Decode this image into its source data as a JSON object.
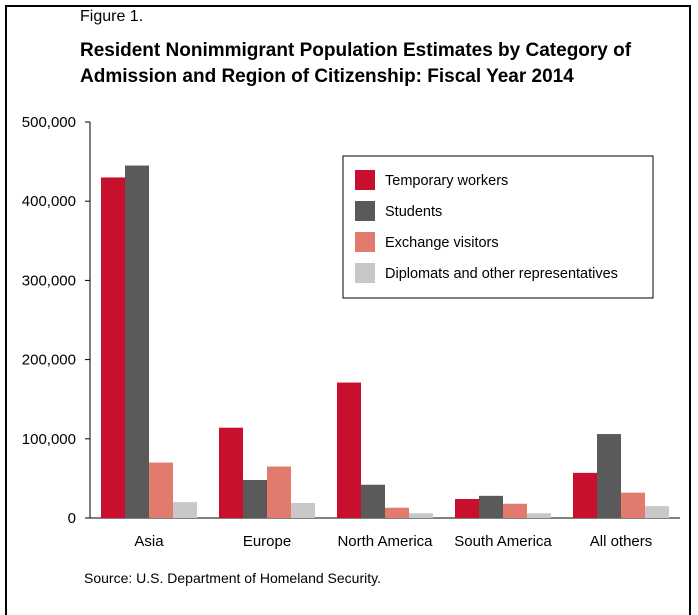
{
  "figure_label": "Figure 1.",
  "title": "Resident Nonimmigrant Population Estimates by Category of Admission and Region of Citizenship: Fiscal Year 2014",
  "source": "Source: U.S. Department of Homeland Security.",
  "chart_data": {
    "type": "bar",
    "categories": [
      "Asia",
      "Europe",
      "North America",
      "South America",
      "All others"
    ],
    "series": [
      {
        "name": "Temporary workers",
        "color": "#c8102e",
        "values": [
          430000,
          114000,
          171000,
          24000,
          57000
        ]
      },
      {
        "name": "Students",
        "color": "#5a5a5a",
        "values": [
          445000,
          48000,
          42000,
          28000,
          106000
        ]
      },
      {
        "name": "Exchange visitors",
        "color": "#e07b6e",
        "values": [
          70000,
          65000,
          13000,
          18000,
          32000
        ]
      },
      {
        "name": "Diplomats and other representatives",
        "color": "#c8c8c8",
        "values": [
          20000,
          19000,
          6000,
          6000,
          15000
        ]
      }
    ],
    "ylim": [
      0,
      500000
    ],
    "yticks": [
      "500,000",
      "400,000",
      "300,000",
      "200,000",
      "100,000",
      "0"
    ],
    "ytick_values": [
      500000,
      400000,
      300000,
      200000,
      100000,
      0
    ],
    "legend_position": "top-right",
    "grid": false
  }
}
